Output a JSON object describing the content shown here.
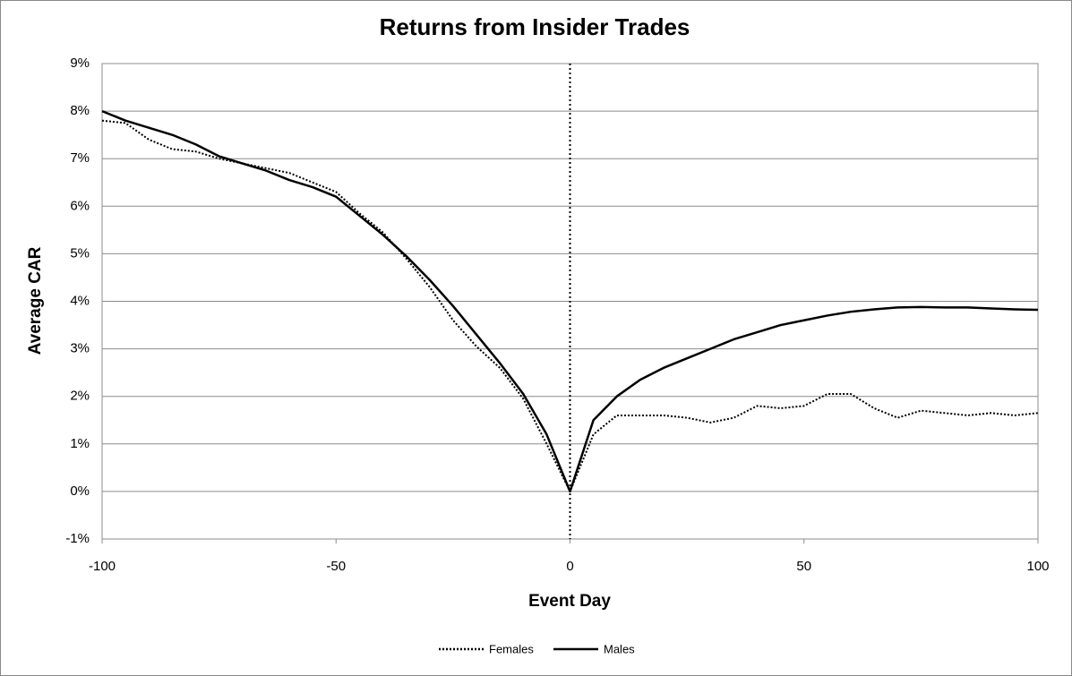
{
  "chart_data": {
    "type": "line",
    "title": "Returns from Insider Trades",
    "x_label": "Event Day",
    "y_label": "Average CAR",
    "x": [
      -100,
      -95,
      -90,
      -85,
      -80,
      -75,
      -70,
      -65,
      -60,
      -55,
      -50,
      -45,
      -40,
      -35,
      -30,
      -25,
      -20,
      -15,
      -10,
      -5,
      0,
      5,
      10,
      15,
      20,
      25,
      30,
      35,
      40,
      45,
      50,
      55,
      60,
      65,
      70,
      75,
      80,
      85,
      90,
      95,
      100
    ],
    "series": [
      {
        "name": "Females",
        "color": "#000000",
        "style": "dotted",
        "values": [
          7.8,
          7.75,
          7.4,
          7.2,
          7.15,
          7.0,
          6.9,
          6.8,
          6.7,
          6.5,
          6.3,
          5.85,
          5.45,
          4.9,
          4.3,
          3.6,
          3.05,
          2.6,
          1.95,
          1.0,
          0,
          1.2,
          1.6,
          1.6,
          1.6,
          1.55,
          1.45,
          1.55,
          1.8,
          1.75,
          1.8,
          2.05,
          2.05,
          1.75,
          1.55,
          1.7,
          1.65,
          1.6,
          1.65,
          1.6,
          1.65
        ]
      },
      {
        "name": "Males",
        "color": "#000000",
        "style": "solid",
        "values": [
          8.0,
          7.8,
          7.65,
          7.5,
          7.3,
          7.05,
          6.9,
          6.75,
          6.55,
          6.4,
          6.2,
          5.8,
          5.4,
          4.95,
          4.45,
          3.9,
          3.3,
          2.7,
          2.05,
          1.2,
          0,
          1.5,
          2.0,
          2.35,
          2.6,
          2.8,
          3.0,
          3.2,
          3.35,
          3.5,
          3.6,
          3.7,
          3.78,
          3.83,
          3.87,
          3.88,
          3.87,
          3.87,
          3.85,
          3.83,
          3.82
        ]
      }
    ],
    "xlim": [
      -100,
      100
    ],
    "xticks": [
      -100,
      -50,
      0,
      50,
      100
    ],
    "ylim": [
      -1,
      9
    ],
    "yticks": [
      {
        "value": -1,
        "label": "-1%"
      },
      {
        "value": 0,
        "label": "0%"
      },
      {
        "value": 1,
        "label": "1%"
      },
      {
        "value": 2,
        "label": "2%"
      },
      {
        "value": 3,
        "label": "3%"
      },
      {
        "value": 4,
        "label": "4%"
      },
      {
        "value": 5,
        "label": "5%"
      },
      {
        "value": 6,
        "label": "6%"
      },
      {
        "value": 7,
        "label": "7%"
      },
      {
        "value": 8,
        "label": "8%"
      },
      {
        "value": 9,
        "label": "9%"
      }
    ],
    "grid": true,
    "vline": 0,
    "legend": "bottom"
  }
}
